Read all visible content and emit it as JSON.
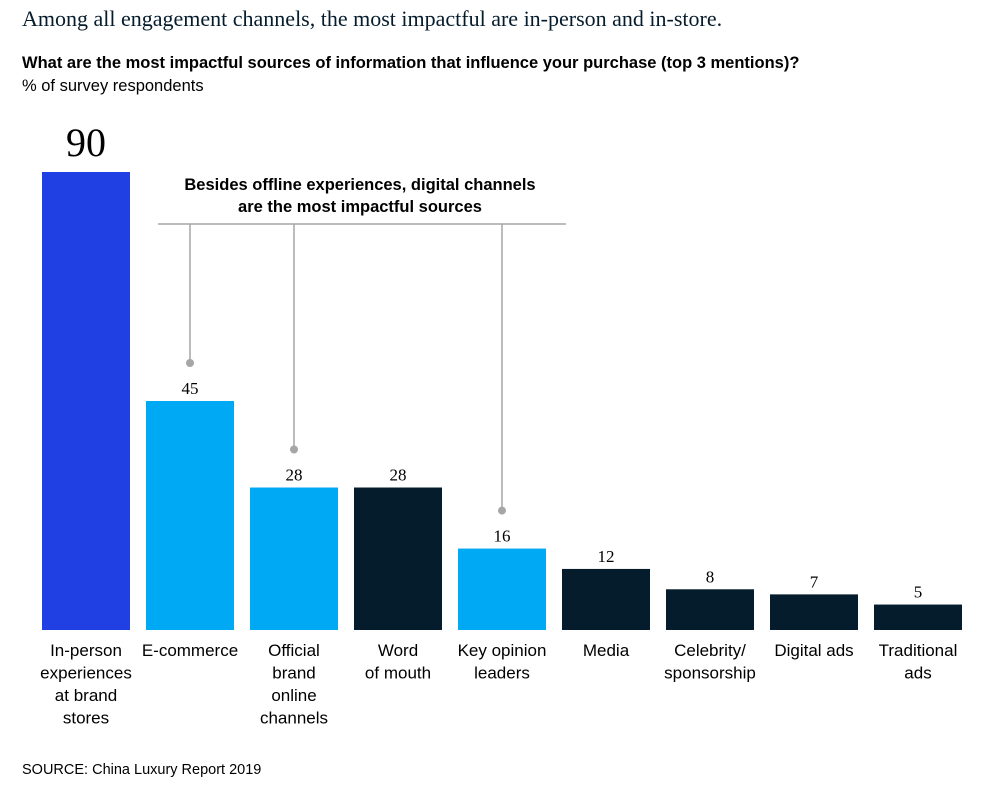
{
  "header": {
    "headline": "Among all engagement channels, the most impactful are in-person and in-store.",
    "question": "What are the most impactful sources of information that influence your purchase (top 3 mentions)?",
    "unit": "% of survey respondents"
  },
  "footer": {
    "source": "SOURCE: China Luxury Report 2019"
  },
  "colors": {
    "highlight": "#2140e3",
    "digital": "#00a9f4",
    "other": "#051c2c",
    "connector": "#a6a6a6"
  },
  "chart_data": {
    "type": "bar",
    "title": "What are the most impactful sources of information that influence your purchase (top 3 mentions)?",
    "ylabel": "% of survey respondents",
    "ylim": [
      0,
      90
    ],
    "grid": false,
    "categories": [
      [
        "In-person",
        "experiences",
        "at brand",
        "stores"
      ],
      [
        "E-commerce"
      ],
      [
        "Official",
        "brand",
        "online",
        "channels"
      ],
      [
        "Word",
        "of mouth"
      ],
      [
        "Key opinion",
        "leaders"
      ],
      [
        "Media"
      ],
      [
        "Celebrity/",
        "sponsorship"
      ],
      [
        "Digital ads"
      ],
      [
        "Traditional",
        "ads"
      ]
    ],
    "values": [
      90,
      45,
      28,
      28,
      16,
      12,
      8,
      7,
      5
    ],
    "bar_groups": [
      "highlight",
      "digital",
      "digital",
      "other",
      "digital",
      "other",
      "other",
      "other",
      "other"
    ],
    "annotation": {
      "lines": [
        "Besides offline experiences, digital channels",
        "are the most impactful sources"
      ],
      "targets": [
        1,
        2,
        4
      ]
    }
  }
}
